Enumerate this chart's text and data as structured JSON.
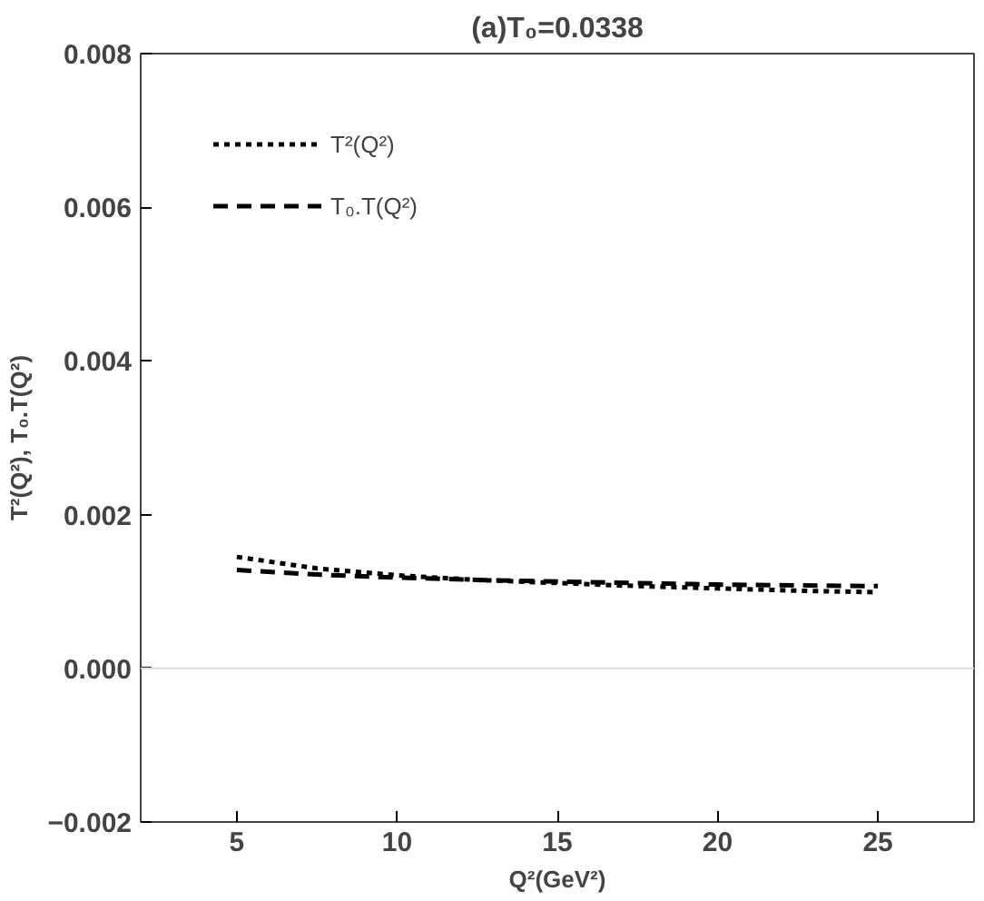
{
  "chart_data": {
    "type": "line",
    "title": "(a)T₀=0.0338",
    "xlabel": "Q²(GeV²)",
    "ylabel": "T²(Q²), T₀.T(Q²)",
    "x": [
      5,
      7.5,
      10,
      12.5,
      15,
      17.5,
      20,
      22.5,
      25
    ],
    "series": [
      {
        "name": "T²(Q²)",
        "color": "#000000",
        "line_style": "dotted",
        "values": [
          0.00145,
          0.0013,
          0.00121,
          0.00115,
          0.00111,
          0.00107,
          0.00104,
          0.00101,
          0.00099
        ]
      },
      {
        "name": "T₀.T(Q²)",
        "color": "#000000",
        "line_style": "dashed",
        "values": [
          0.00128,
          0.00122,
          0.00118,
          0.00115,
          0.00113,
          0.00111,
          0.00109,
          0.00108,
          0.00107
        ]
      }
    ],
    "xlim": [
      2,
      28
    ],
    "xticks": [
      5,
      10,
      15,
      20,
      25
    ],
    "ylim": [
      -0.002,
      0.008
    ],
    "yticks": [
      {
        "value": -0.002,
        "label": "−0.002"
      },
      {
        "value": 0,
        "label": "0.000"
      },
      {
        "value": 0.002,
        "label": "0.002"
      },
      {
        "value": 0.004,
        "label": "0.004"
      },
      {
        "value": 0.006,
        "label": "0.006"
      },
      {
        "value": 0.008,
        "label": "0.008"
      }
    ],
    "ref_lines": [
      {
        "axis": "y",
        "value": 0,
        "color": "#d9d9d9"
      }
    ],
    "grid": false,
    "legend": "top left",
    "marker": "none"
  }
}
